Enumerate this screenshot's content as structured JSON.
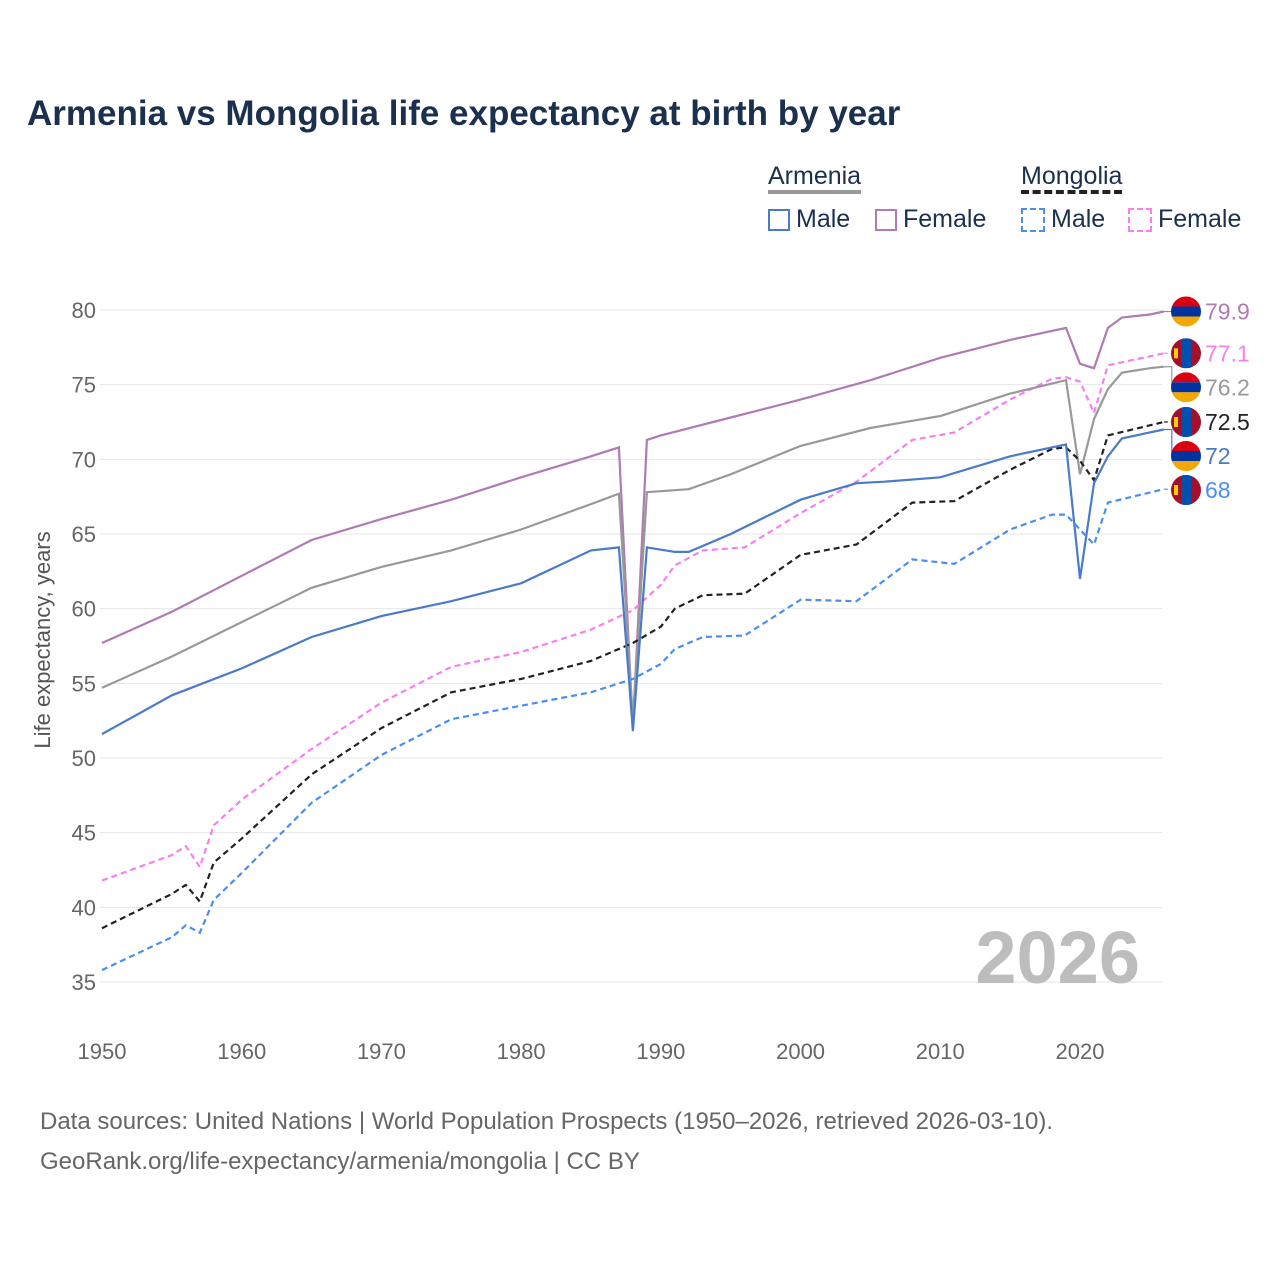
{
  "chart_data": {
    "type": "line",
    "title": "Armenia vs Mongolia life expectancy at birth by year",
    "xlabel": "",
    "ylabel": "Life expectancy, years",
    "xlim": [
      1950,
      2026
    ],
    "ylim": [
      33,
      82
    ],
    "xticks": [
      1950,
      1960,
      1970,
      1980,
      1990,
      2000,
      2010,
      2020
    ],
    "yticks": [
      35,
      40,
      45,
      50,
      55,
      60,
      65,
      70,
      75,
      80
    ],
    "grid": true,
    "year_watermark": "2026",
    "legend": {
      "placement": "top-right",
      "groups": [
        {
          "name": "Armenia",
          "items": [
            "Male",
            "Female"
          ]
        },
        {
          "name": "Mongolia",
          "items": [
            "Male",
            "Female"
          ]
        }
      ]
    },
    "series": [
      {
        "name": "Armenia Female",
        "country": "Armenia",
        "color": "#b07ab5",
        "dash": false,
        "end_label": "79.9",
        "points": [
          [
            1950,
            57.7
          ],
          [
            1955,
            59.8
          ],
          [
            1960,
            62.2
          ],
          [
            1965,
            64.6
          ],
          [
            1970,
            66.0
          ],
          [
            1975,
            67.3
          ],
          [
            1980,
            68.8
          ],
          [
            1985,
            70.2
          ],
          [
            1987,
            70.8
          ],
          [
            1988,
            52.0
          ],
          [
            1989,
            71.3
          ],
          [
            1990,
            71.6
          ],
          [
            1995,
            72.8
          ],
          [
            2000,
            74.0
          ],
          [
            2005,
            75.3
          ],
          [
            2010,
            76.8
          ],
          [
            2015,
            78.0
          ],
          [
            2019,
            78.8
          ],
          [
            2020,
            76.4
          ],
          [
            2021,
            76.1
          ],
          [
            2022,
            78.8
          ],
          [
            2023,
            79.5
          ],
          [
            2025,
            79.7
          ],
          [
            2026,
            79.9
          ]
        ]
      },
      {
        "name": "Mongolia Female",
        "country": "Mongolia",
        "color": "#f77ff0",
        "dash": true,
        "end_label": "77.1",
        "points": [
          [
            1950,
            41.8
          ],
          [
            1955,
            43.5
          ],
          [
            1956,
            44.1
          ],
          [
            1957,
            42.7
          ],
          [
            1958,
            45.5
          ],
          [
            1960,
            47.2
          ],
          [
            1965,
            50.6
          ],
          [
            1970,
            53.7
          ],
          [
            1975,
            56.1
          ],
          [
            1980,
            57.1
          ],
          [
            1985,
            58.6
          ],
          [
            1988,
            59.9
          ],
          [
            1990,
            61.6
          ],
          [
            1991,
            62.9
          ],
          [
            1993,
            63.9
          ],
          [
            1996,
            64.1
          ],
          [
            2000,
            66.4
          ],
          [
            2004,
            68.5
          ],
          [
            2008,
            71.3
          ],
          [
            2011,
            71.8
          ],
          [
            2015,
            74.0
          ],
          [
            2018,
            75.4
          ],
          [
            2019,
            75.5
          ],
          [
            2020,
            75.2
          ],
          [
            2021,
            73.1
          ],
          [
            2022,
            76.3
          ],
          [
            2026,
            77.1
          ]
        ]
      },
      {
        "name": "Armenia",
        "country": "Armenia",
        "color": "#999999",
        "dash": false,
        "end_label": "76.2",
        "points": [
          [
            1950,
            54.7
          ],
          [
            1955,
            56.8
          ],
          [
            1960,
            59.1
          ],
          [
            1965,
            61.4
          ],
          [
            1970,
            62.8
          ],
          [
            1975,
            63.9
          ],
          [
            1980,
            65.3
          ],
          [
            1985,
            67.0
          ],
          [
            1987,
            67.7
          ],
          [
            1988,
            52.5
          ],
          [
            1989,
            67.8
          ],
          [
            1992,
            68.0
          ],
          [
            1995,
            69.0
          ],
          [
            2000,
            70.9
          ],
          [
            2005,
            72.1
          ],
          [
            2010,
            72.9
          ],
          [
            2015,
            74.4
          ],
          [
            2019,
            75.3
          ],
          [
            2020,
            69.0
          ],
          [
            2021,
            72.7
          ],
          [
            2022,
            74.7
          ],
          [
            2023,
            75.8
          ],
          [
            2025,
            76.1
          ],
          [
            2026,
            76.2
          ]
        ]
      },
      {
        "name": "Mongolia",
        "country": "Mongolia",
        "color": "#222222",
        "dash": true,
        "end_label": "72.5",
        "points": [
          [
            1950,
            38.6
          ],
          [
            1955,
            40.9
          ],
          [
            1956,
            41.5
          ],
          [
            1957,
            40.4
          ],
          [
            1958,
            43.0
          ],
          [
            1960,
            44.6
          ],
          [
            1965,
            48.9
          ],
          [
            1970,
            52.0
          ],
          [
            1975,
            54.4
          ],
          [
            1980,
            55.3
          ],
          [
            1985,
            56.5
          ],
          [
            1988,
            57.7
          ],
          [
            1990,
            58.8
          ],
          [
            1991,
            60.0
          ],
          [
            1993,
            60.9
          ],
          [
            1996,
            61.0
          ],
          [
            2000,
            63.6
          ],
          [
            2004,
            64.3
          ],
          [
            2008,
            67.1
          ],
          [
            2011,
            67.2
          ],
          [
            2015,
            69.3
          ],
          [
            2018,
            70.7
          ],
          [
            2019,
            70.8
          ],
          [
            2020,
            69.9
          ],
          [
            2021,
            68.6
          ],
          [
            2022,
            71.6
          ],
          [
            2026,
            72.5
          ]
        ]
      },
      {
        "name": "Armenia Male",
        "country": "Armenia",
        "color": "#4a7bc8",
        "dash": false,
        "end_label": "72",
        "points": [
          [
            1950,
            51.6
          ],
          [
            1955,
            54.2
          ],
          [
            1960,
            56.0
          ],
          [
            1965,
            58.1
          ],
          [
            1970,
            59.5
          ],
          [
            1975,
            60.5
          ],
          [
            1980,
            61.7
          ],
          [
            1985,
            63.9
          ],
          [
            1987,
            64.1
          ],
          [
            1988,
            51.8
          ],
          [
            1989,
            64.1
          ],
          [
            1991,
            63.8
          ],
          [
            1992,
            63.8
          ],
          [
            1995,
            65.0
          ],
          [
            2000,
            67.3
          ],
          [
            2004,
            68.4
          ],
          [
            2006,
            68.5
          ],
          [
            2010,
            68.8
          ],
          [
            2015,
            70.2
          ],
          [
            2019,
            71.0
          ],
          [
            2020,
            62.0
          ],
          [
            2021,
            68.4
          ],
          [
            2022,
            70.2
          ],
          [
            2023,
            71.4
          ],
          [
            2026,
            72.0
          ]
        ]
      },
      {
        "name": "Mongolia Male",
        "country": "Mongolia",
        "color": "#4b8ef0",
        "dash": true,
        "end_label": "68",
        "points": [
          [
            1950,
            35.8
          ],
          [
            1955,
            38.0
          ],
          [
            1956,
            38.8
          ],
          [
            1957,
            38.3
          ],
          [
            1958,
            40.5
          ],
          [
            1960,
            42.3
          ],
          [
            1965,
            47.0
          ],
          [
            1970,
            50.2
          ],
          [
            1975,
            52.6
          ],
          [
            1980,
            53.5
          ],
          [
            1985,
            54.4
          ],
          [
            1988,
            55.3
          ],
          [
            1990,
            56.3
          ],
          [
            1991,
            57.3
          ],
          [
            1993,
            58.1
          ],
          [
            1996,
            58.2
          ],
          [
            2000,
            60.6
          ],
          [
            2004,
            60.5
          ],
          [
            2008,
            63.3
          ],
          [
            2011,
            63.0
          ],
          [
            2015,
            65.3
          ],
          [
            2018,
            66.3
          ],
          [
            2019,
            66.3
          ],
          [
            2020,
            65.3
          ],
          [
            2021,
            64.3
          ],
          [
            2022,
            67.1
          ],
          [
            2026,
            68.0
          ]
        ]
      }
    ]
  },
  "sources": {
    "line1": "Data sources: United Nations | World Population Prospects (1950–2026, retrieved 2026-03-10).",
    "line2": "GeoRank.org/life-expectancy/armenia/mongolia | CC BY"
  }
}
